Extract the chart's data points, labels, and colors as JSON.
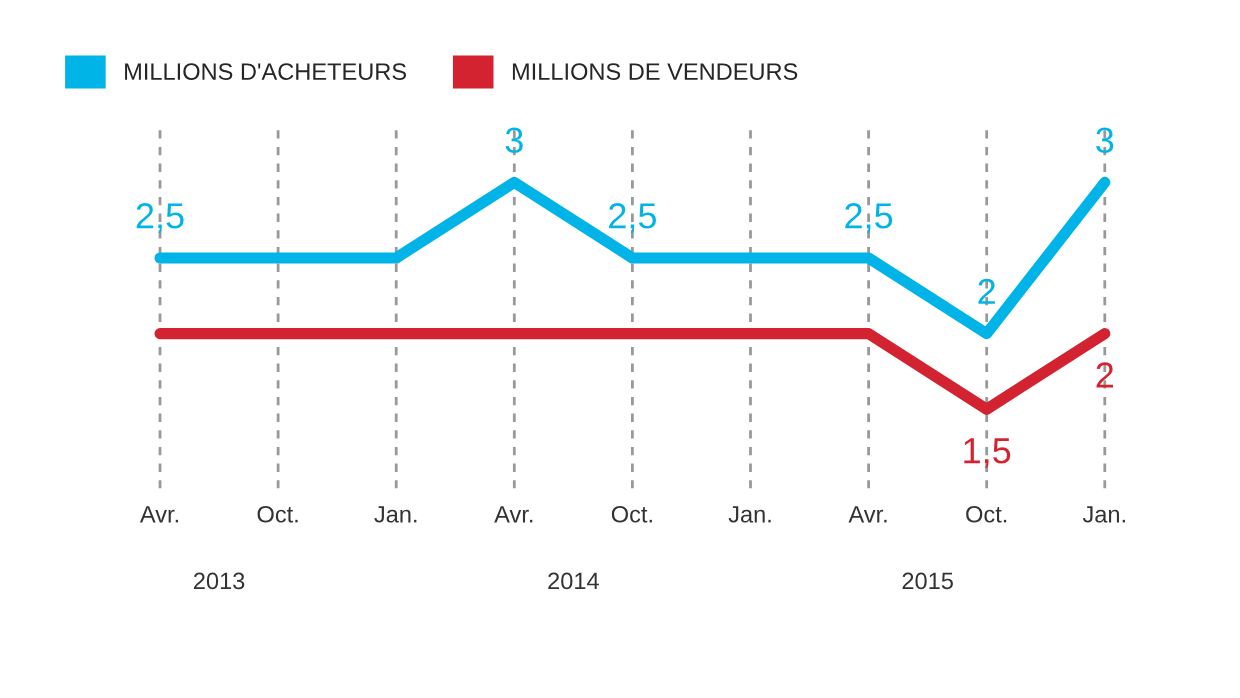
{
  "chart_data": {
    "type": "line",
    "categories": [
      "Avr.",
      "Oct.",
      "Jan.",
      "Avr.",
      "Oct.",
      "Jan.",
      "Avr.",
      "Oct.",
      "Jan."
    ],
    "series": [
      {
        "name": "MILLIONS D'ACHETEURS",
        "color": "#00b4e8",
        "values": [
          2.5,
          2.5,
          2.5,
          3,
          2.5,
          2.5,
          2.5,
          2,
          3
        ],
        "value_labels": [
          "2,5",
          null,
          null,
          "3",
          "2,5",
          null,
          "2,5",
          "2",
          "3"
        ]
      },
      {
        "name": "MILLIONS DE VENDEURS",
        "color": "#d42330",
        "values": [
          2,
          2,
          2,
          2,
          2,
          2,
          2,
          1.5,
          2
        ],
        "value_labels": [
          null,
          null,
          null,
          null,
          null,
          null,
          null,
          "1,5",
          "2"
        ]
      }
    ],
    "annotations": [
      "2013",
      "2014",
      "2015"
    ],
    "grid": "x",
    "legend": "top left",
    "marker": "none",
    "line_style": "solid"
  }
}
